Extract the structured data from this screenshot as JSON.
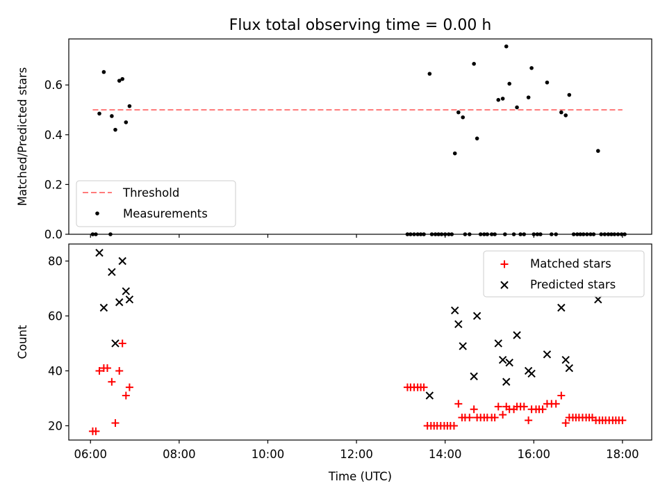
{
  "chart_data": [
    {
      "type": "scatter",
      "title": "Flux total observing time = 0.00 h",
      "xlabel": "",
      "ylabel": "Matched/Predicted stars",
      "xlim": [
        5.51,
        18.66
      ],
      "ylim": [
        0.0,
        0.785
      ],
      "yticks": [
        0.0,
        0.2,
        0.4,
        0.6
      ],
      "ytick_labels": [
        "0.0",
        "0.2",
        "0.4",
        "0.6"
      ],
      "xticks": [
        6,
        8,
        10,
        12,
        14,
        16,
        18
      ],
      "grid": false,
      "legend_position": "lower-left",
      "threshold": {
        "name": "Threshold",
        "color": "#ff7b7b",
        "x": [
          6.05,
          18.0
        ],
        "y": 0.5
      },
      "series": [
        {
          "name": "Measurements",
          "color": "#000000",
          "marker": "dot",
          "points": [
            [
              6.05,
              0.0
            ],
            [
              6.12,
              0.0
            ],
            [
              6.2,
              0.485
            ],
            [
              6.3,
              0.652
            ],
            [
              6.45,
              0.0
            ],
            [
              6.48,
              0.475
            ],
            [
              6.56,
              0.42
            ],
            [
              6.65,
              0.617
            ],
            [
              6.72,
              0.624
            ],
            [
              6.8,
              0.45
            ],
            [
              6.88,
              0.515
            ],
            [
              13.15,
              0.0
            ],
            [
              13.22,
              0.0
            ],
            [
              13.3,
              0.0
            ],
            [
              13.38,
              0.0
            ],
            [
              13.45,
              0.0
            ],
            [
              13.52,
              0.0
            ],
            [
              13.65,
              0.645
            ],
            [
              13.7,
              0.0
            ],
            [
              13.78,
              0.0
            ],
            [
              13.85,
              0.0
            ],
            [
              13.92,
              0.0
            ],
            [
              14.0,
              0.0
            ],
            [
              14.08,
              0.0
            ],
            [
              14.15,
              0.0
            ],
            [
              14.22,
              0.325
            ],
            [
              14.3,
              0.49
            ],
            [
              14.4,
              0.47
            ],
            [
              14.45,
              0.0
            ],
            [
              14.55,
              0.0
            ],
            [
              14.65,
              0.685
            ],
            [
              14.72,
              0.385
            ],
            [
              14.8,
              0.0
            ],
            [
              14.88,
              0.0
            ],
            [
              14.95,
              0.0
            ],
            [
              15.05,
              0.0
            ],
            [
              15.12,
              0.0
            ],
            [
              15.2,
              0.54
            ],
            [
              15.3,
              0.545
            ],
            [
              15.35,
              0.0
            ],
            [
              15.38,
              0.755
            ],
            [
              15.45,
              0.605
            ],
            [
              15.55,
              0.0
            ],
            [
              15.62,
              0.51
            ],
            [
              15.7,
              0.0
            ],
            [
              15.78,
              0.0
            ],
            [
              15.88,
              0.55
            ],
            [
              15.95,
              0.668
            ],
            [
              16.0,
              0.0
            ],
            [
              16.08,
              0.0
            ],
            [
              16.15,
              0.0
            ],
            [
              16.3,
              0.61
            ],
            [
              16.4,
              0.0
            ],
            [
              16.5,
              0.0
            ],
            [
              16.62,
              0.49
            ],
            [
              16.72,
              0.478
            ],
            [
              16.8,
              0.56
            ],
            [
              16.9,
              0.0
            ],
            [
              16.98,
              0.0
            ],
            [
              17.05,
              0.0
            ],
            [
              17.12,
              0.0
            ],
            [
              17.2,
              0.0
            ],
            [
              17.28,
              0.0
            ],
            [
              17.35,
              0.0
            ],
            [
              17.45,
              0.335
            ],
            [
              17.52,
              0.0
            ],
            [
              17.6,
              0.0
            ],
            [
              17.68,
              0.0
            ],
            [
              17.75,
              0.0
            ],
            [
              17.82,
              0.0
            ],
            [
              17.9,
              0.0
            ],
            [
              17.98,
              0.0
            ],
            [
              18.05,
              0.0
            ]
          ]
        }
      ]
    },
    {
      "type": "scatter",
      "title": "",
      "xlabel": "Time (UTC)",
      "ylabel": "Count",
      "xlim": [
        5.51,
        18.66
      ],
      "ylim": [
        14.8,
        86.2
      ],
      "yticks": [
        20,
        40,
        60,
        80
      ],
      "ytick_labels": [
        "20",
        "40",
        "60",
        "80"
      ],
      "xticks": [
        6,
        8,
        10,
        12,
        14,
        16,
        18
      ],
      "xtick_labels": [
        "06:00",
        "08:00",
        "10:00",
        "12:00",
        "14:00",
        "16:00",
        "18:00"
      ],
      "grid": false,
      "legend_position": "top-right",
      "series": [
        {
          "name": "Matched stars",
          "color": "#ff0000",
          "marker": "plus",
          "points": [
            [
              6.05,
              18
            ],
            [
              6.12,
              18
            ],
            [
              6.2,
              40
            ],
            [
              6.3,
              41
            ],
            [
              6.38,
              41
            ],
            [
              6.48,
              36
            ],
            [
              6.56,
              21
            ],
            [
              6.65,
              40
            ],
            [
              6.72,
              50
            ],
            [
              6.8,
              31
            ],
            [
              6.88,
              34
            ],
            [
              13.15,
              34
            ],
            [
              13.22,
              34
            ],
            [
              13.3,
              34
            ],
            [
              13.38,
              34
            ],
            [
              13.45,
              34
            ],
            [
              13.52,
              34
            ],
            [
              13.6,
              20
            ],
            [
              13.68,
              20
            ],
            [
              13.75,
              20
            ],
            [
              13.82,
              20
            ],
            [
              13.9,
              20
            ],
            [
              13.98,
              20
            ],
            [
              14.05,
              20
            ],
            [
              14.12,
              20
            ],
            [
              14.2,
              20
            ],
            [
              14.3,
              28
            ],
            [
              14.38,
              23
            ],
            [
              14.45,
              23
            ],
            [
              14.55,
              23
            ],
            [
              14.65,
              26
            ],
            [
              14.72,
              23
            ],
            [
              14.8,
              23
            ],
            [
              14.88,
              23
            ],
            [
              14.95,
              23
            ],
            [
              15.05,
              23
            ],
            [
              15.12,
              23
            ],
            [
              15.2,
              27
            ],
            [
              15.3,
              24
            ],
            [
              15.38,
              27
            ],
            [
              15.45,
              26
            ],
            [
              15.55,
              26
            ],
            [
              15.62,
              27
            ],
            [
              15.7,
              27
            ],
            [
              15.78,
              27
            ],
            [
              15.88,
              22
            ],
            [
              15.95,
              26
            ],
            [
              16.05,
              26
            ],
            [
              16.12,
              26
            ],
            [
              16.2,
              26
            ],
            [
              16.3,
              28
            ],
            [
              16.4,
              28
            ],
            [
              16.5,
              28
            ],
            [
              16.62,
              31
            ],
            [
              16.72,
              21
            ],
            [
              16.8,
              23
            ],
            [
              16.88,
              23
            ],
            [
              16.95,
              23
            ],
            [
              17.02,
              23
            ],
            [
              17.1,
              23
            ],
            [
              17.18,
              23
            ],
            [
              17.25,
              23
            ],
            [
              17.32,
              23
            ],
            [
              17.4,
              22
            ],
            [
              17.48,
              22
            ],
            [
              17.55,
              22
            ],
            [
              17.62,
              22
            ],
            [
              17.7,
              22
            ],
            [
              17.78,
              22
            ],
            [
              17.85,
              22
            ],
            [
              17.92,
              22
            ],
            [
              18.0,
              22
            ]
          ]
        },
        {
          "name": "Predicted stars",
          "color": "#000000",
          "marker": "x",
          "points": [
            [
              6.2,
              83
            ],
            [
              6.3,
              63
            ],
            [
              6.48,
              76
            ],
            [
              6.56,
              50
            ],
            [
              6.65,
              65
            ],
            [
              6.72,
              80
            ],
            [
              6.8,
              69
            ],
            [
              6.88,
              66
            ],
            [
              13.65,
              31
            ],
            [
              14.22,
              62
            ],
            [
              14.3,
              57
            ],
            [
              14.4,
              49
            ],
            [
              14.65,
              38
            ],
            [
              14.72,
              60
            ],
            [
              15.2,
              50
            ],
            [
              15.3,
              44
            ],
            [
              15.38,
              36
            ],
            [
              15.45,
              43
            ],
            [
              15.62,
              53
            ],
            [
              15.88,
              40
            ],
            [
              15.95,
              39
            ],
            [
              16.3,
              46
            ],
            [
              16.62,
              63
            ],
            [
              16.72,
              44
            ],
            [
              16.8,
              41
            ],
            [
              17.45,
              66
            ]
          ]
        }
      ]
    }
  ]
}
